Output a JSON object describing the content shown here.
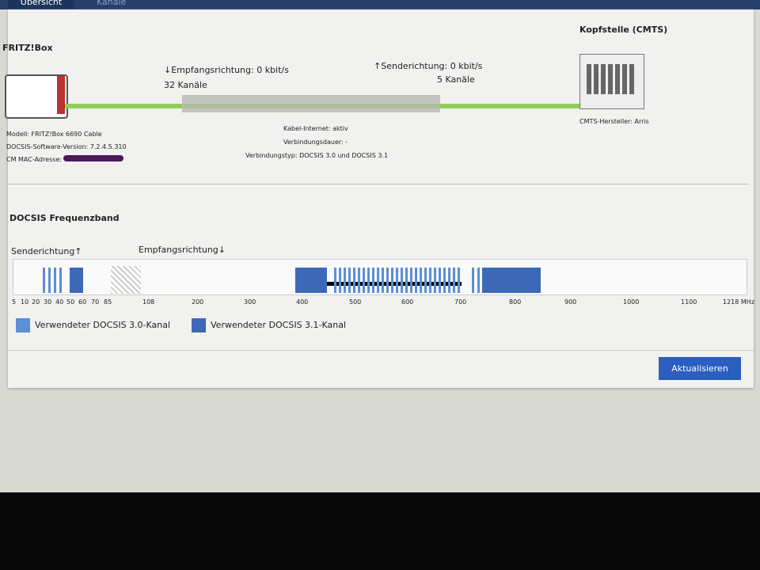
{
  "tabs": [
    "Übersicht",
    "Kanäle"
  ],
  "device": {
    "title": "FRITZ!Box",
    "model": "Modell: FRITZ!Box 6690 Cable",
    "software": "DOCSIS-Software-Version: 7.2.4.5.310",
    "mac": "CM MAC-Adresse:"
  },
  "link": {
    "down_rate": "↓Empfangsrichtung: 0 kbit/s",
    "down_channels": "32 Kanäle",
    "up_rate": "↑Senderichtung: 0 kbit/s",
    "up_channels": "5 Kanäle"
  },
  "status": [
    "Kabel-Internet: aktiv",
    "Verbindungsdauer: -",
    "Verbindungstyp: DOCSIS 3.0 und DOCSIS 3.1"
  ],
  "cmts": {
    "title": "Kopfstelle (CMTS)",
    "vendor": "CMTS-Hersteller: Arris"
  },
  "band": {
    "title": "DOCSIS Frequenzband",
    "up_label": "Senderichtung↑",
    "down_label": "Empfangsrichtung↓",
    "ticks": [
      "5",
      "10",
      "20",
      "30",
      "40",
      "50",
      "60",
      "70",
      "85",
      "108",
      "200",
      "300",
      "400",
      "500",
      "600",
      "700",
      "800",
      "900",
      "1000",
      "1100",
      "1218 MHz"
    ],
    "legend": [
      "Verwendeter DOCSIS 3.0-Kanal",
      "Verwendeter DOCSIS 3.1-Kanal"
    ]
  },
  "button": "Aktualisieren"
}
